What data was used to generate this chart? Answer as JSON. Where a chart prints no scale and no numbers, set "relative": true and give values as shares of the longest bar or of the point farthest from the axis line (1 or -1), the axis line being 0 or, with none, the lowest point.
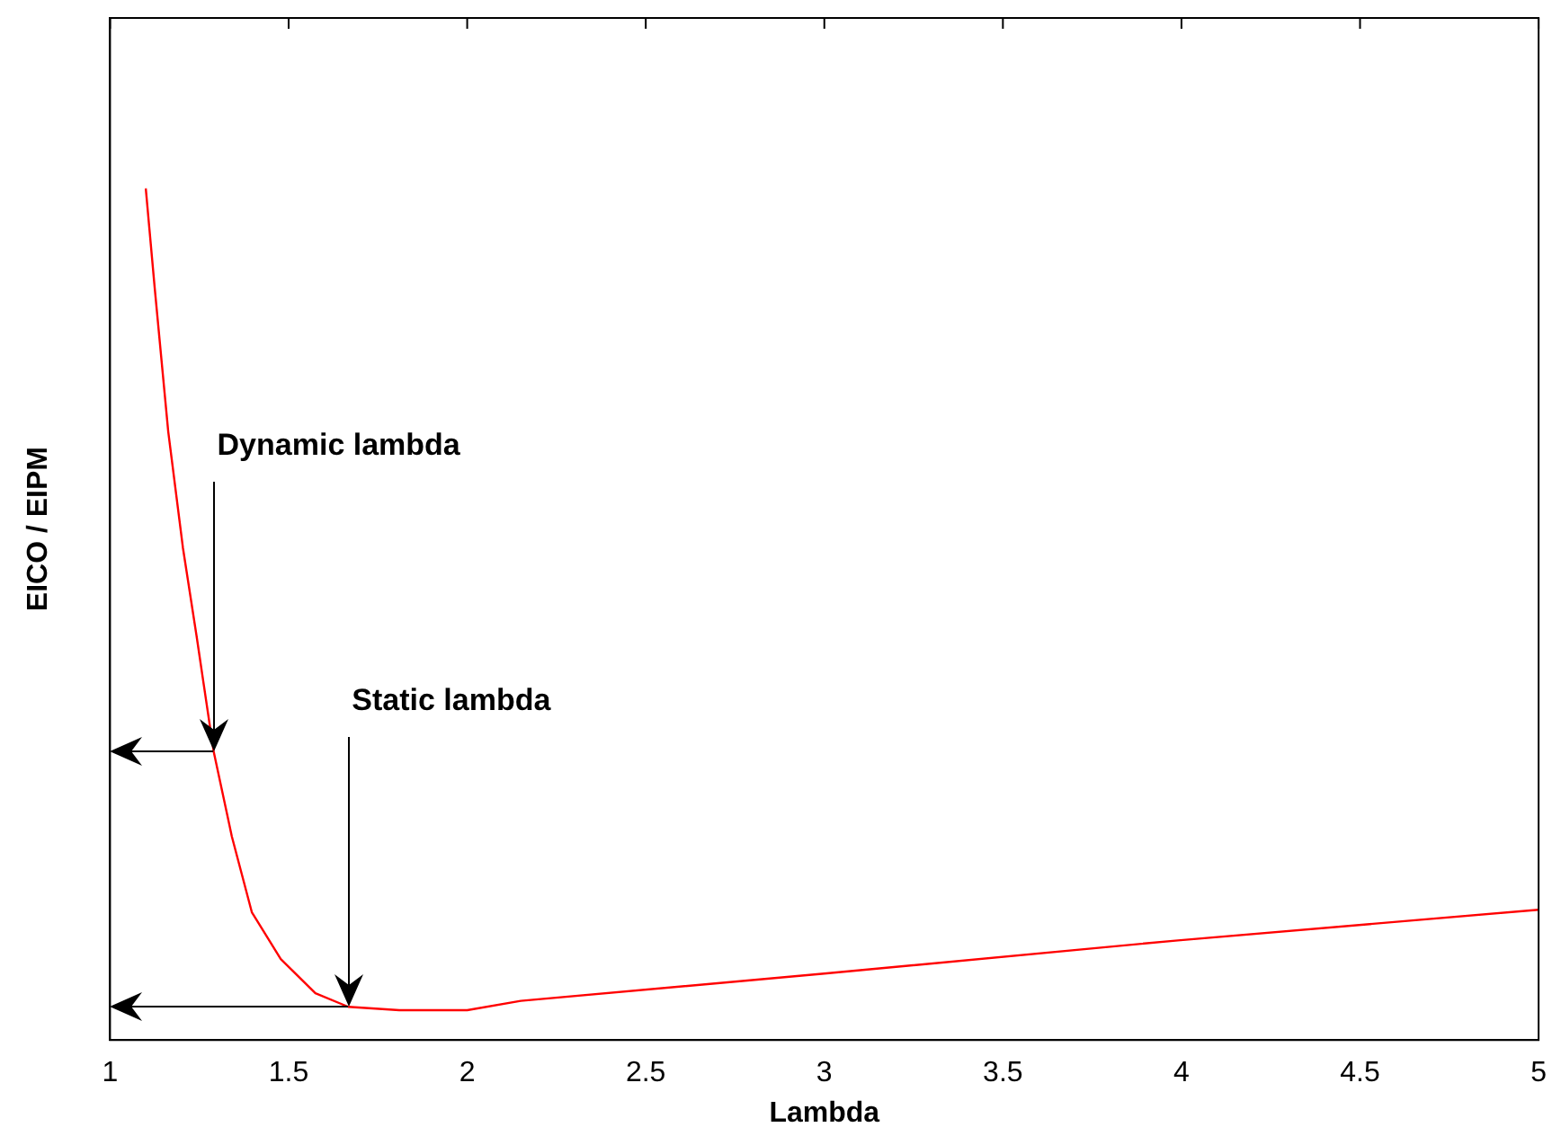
{
  "chart_data": {
    "type": "line",
    "xlabel": "Lambda",
    "ylabel": "EICO / EIPM",
    "relative": true,
    "xlim": [
      1,
      5
    ],
    "xticks": [
      1,
      1.5,
      2,
      2.5,
      3,
      3.5,
      4,
      4.5,
      5
    ],
    "grid": false,
    "legend": false,
    "marker": "none",
    "line_style": "solid",
    "x": [
      1.1,
      1.125,
      1.163,
      1.204,
      1.242,
      1.29,
      1.341,
      1.397,
      1.478,
      1.575,
      1.667,
      1.81,
      2.0,
      2.15,
      3.0,
      3.99,
      5.0
    ],
    "series": [
      {
        "color": "#ff0000",
        "values": [
          1.0,
          0.883,
          0.714,
          0.578,
          0.475,
          0.339,
          0.239,
          0.15,
          0.095,
          0.055,
          0.039,
          0.035,
          0.035,
          0.046,
          0.078,
          0.117,
          0.153
        ]
      }
    ],
    "annotations": [
      {
        "text": "Dynamic lambda",
        "x": 1.29,
        "y": 0.339
      },
      {
        "text": "Static lambda",
        "x": 1.667,
        "y": 0.039
      }
    ]
  }
}
